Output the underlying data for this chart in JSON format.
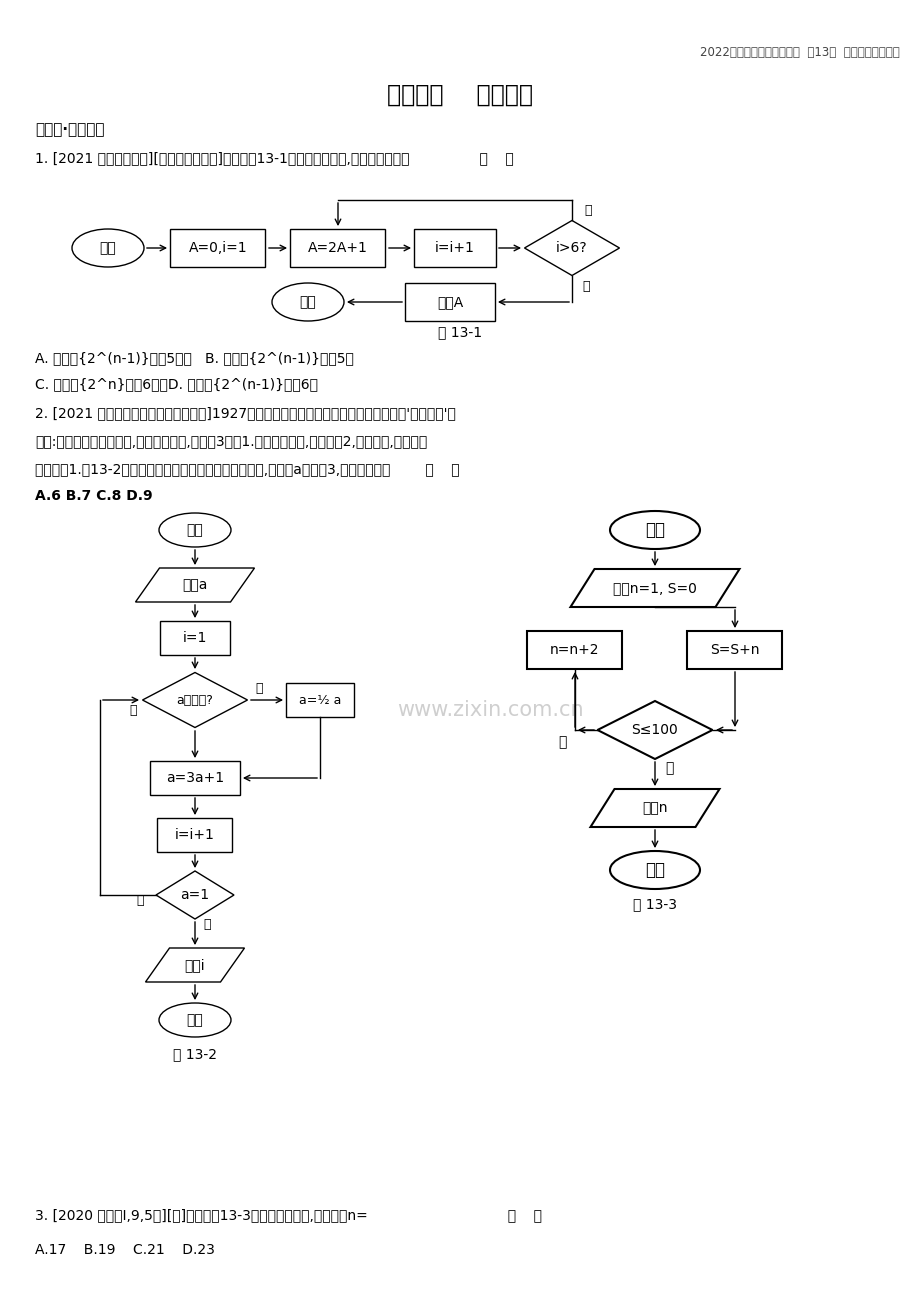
{
  "page_header": "2022版高考数学大一轮复习  第13章  算法初步备考试题",
  "title": "第十三章    算法初步",
  "section_header": "练好题·考点自测",
  "q1_text": "1. [2021 江西宜春模拟][算法与数列交汇]阅读如图13-1所示的程序框图,该算法的功能是                （    ）",
  "fig1_label": "图 13-1",
  "q1_options_AB": "A. 求数列{2^(n-1)}的前5项和   B. 求数列{2^(n-1)}的第5项",
  "q1_options_CD": "C. 求数列{2^n}的前6项和D. 求数列{2^(n-1)}的第6项",
  "q2_text1": "2. [2021 河北衡水中学高三第一次联考]1927年德国汉堡大学的学生考拉兹提出一个关于'奇偶归一'的",
  "q2_text2": "猜想:对于任意一个正整数,如果它是奇数,对它乘3再加1.如果它是偶数,对它除以2,这样循环,最终结果",
  "q2_text3": "都能得到1.图13-2是根据考拉兹猜想设计的一个程序框图,若输入a的值为3,则输出结果为        （    ）",
  "q2_options": "A.6 B.7 C.8 D.9",
  "fig2_label": "图 13-2",
  "fig3_label": "图 13-3",
  "q3_text": "3. [2020 全国卷I,9,5分][文]执行如图13-3所示的程序框图,则输出的n=                                （    ）",
  "q3_options": "A.17    B.19    C.21    D.23",
  "watermark": "www.zixin.com.cn",
  "bg_color": "#ffffff",
  "text_color": "#000000",
  "box_fill": "#ffffff",
  "box_border": "#000000"
}
